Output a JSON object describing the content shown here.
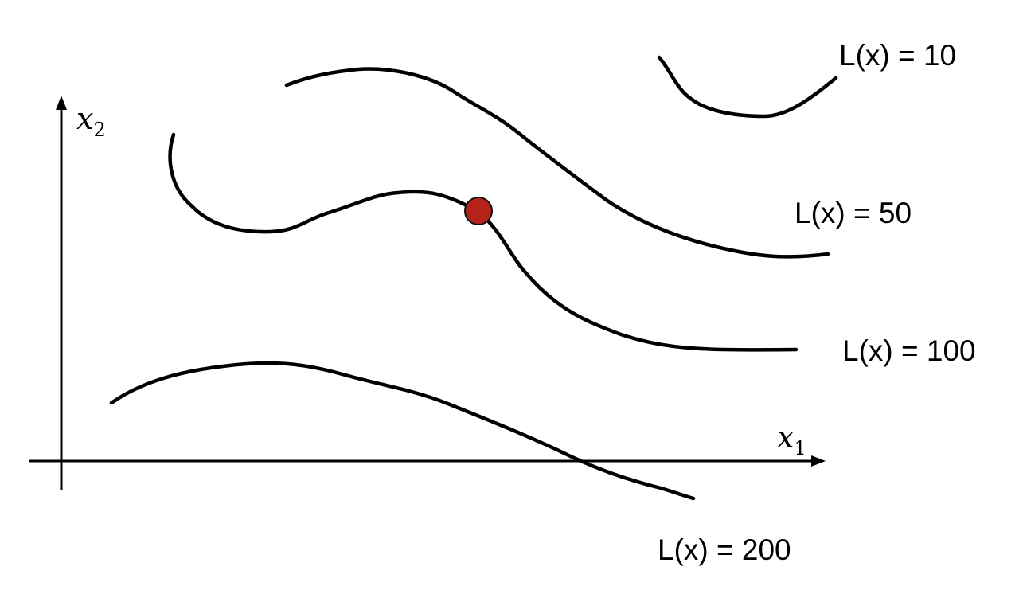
{
  "axes": {
    "x_label": "x",
    "x_subscript": "1",
    "y_label": "x",
    "y_subscript": "2"
  },
  "contours": [
    {
      "label": "L(x) = 10"
    },
    {
      "label": "L(x) = 50"
    },
    {
      "label": "L(x) = 100"
    },
    {
      "label": "L(x) = 200"
    }
  ],
  "point": {
    "color": "#b5221a"
  }
}
